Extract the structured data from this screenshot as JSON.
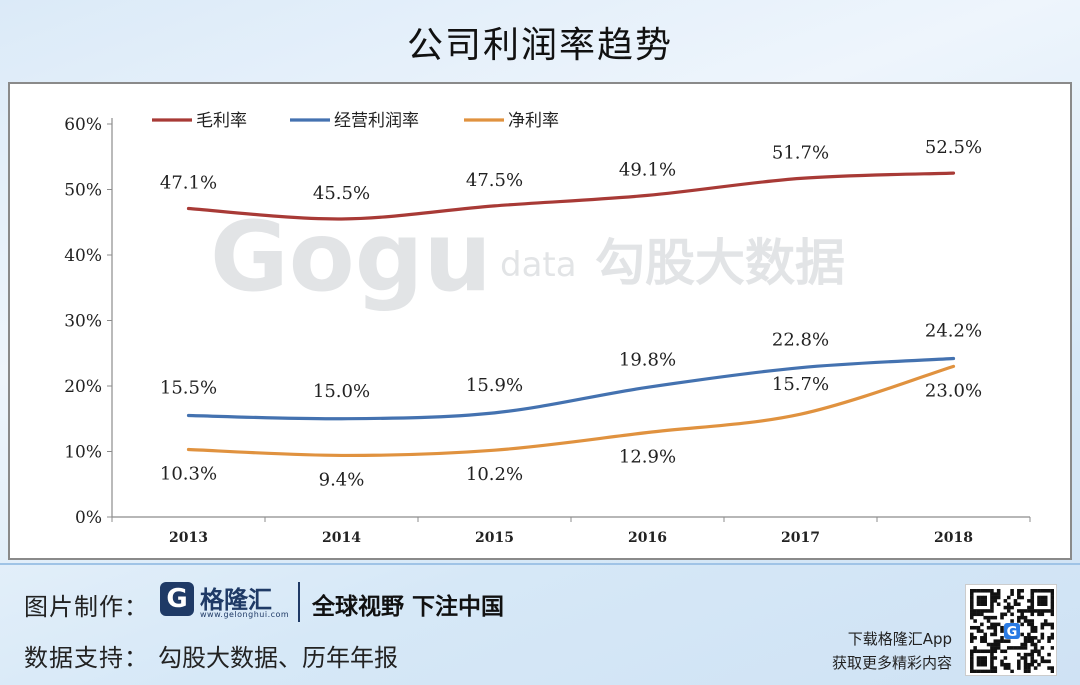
{
  "title": "公司利润率趋势",
  "watermark": {
    "brand": "Gogu",
    "sub": "data",
    "cn": "勾股大数据"
  },
  "chart_data": {
    "type": "line",
    "categories": [
      "2013",
      "2014",
      "2015",
      "2016",
      "2017",
      "2018"
    ],
    "ylim": [
      0,
      60
    ],
    "yticks": [
      "0%",
      "10%",
      "20%",
      "30%",
      "40%",
      "50%",
      "60%"
    ],
    "ytick_values": [
      0,
      10,
      20,
      30,
      40,
      50,
      60
    ],
    "grid": false,
    "legend_position": "top-left",
    "series": [
      {
        "name": "毛利率",
        "color": "#a83a36",
        "values": [
          47.1,
          45.5,
          47.5,
          49.1,
          51.7,
          52.5
        ],
        "labels": [
          "47.1%",
          "45.5%",
          "47.5%",
          "49.1%",
          "51.7%",
          "52.5%"
        ]
      },
      {
        "name": "经营利润率",
        "color": "#4472b0",
        "values": [
          15.5,
          15.0,
          15.9,
          19.8,
          22.8,
          24.2
        ],
        "labels": [
          "15.5%",
          "15.0%",
          "15.9%",
          "19.8%",
          "22.8%",
          "24.2%"
        ]
      },
      {
        "name": "净利率",
        "color": "#e0923f",
        "values": [
          10.3,
          9.4,
          10.2,
          12.9,
          15.7,
          23.0
        ],
        "labels": [
          "10.3%",
          "9.4%",
          "10.2%",
          "12.9%",
          "15.7%",
          "23.0%"
        ]
      }
    ]
  },
  "footer": {
    "maker_label": "图片制作：",
    "brand_logo_letter": "G",
    "brand_name": "格隆汇",
    "brand_url": "www.gelonghui.com",
    "slogan": "全球视野 下注中国",
    "source_label": "数据支持：",
    "sources": "勾股大数据、历年年报",
    "app_line1": "下载格隆汇App",
    "app_line2": "获取更多精彩内容",
    "qr_badge": "G"
  }
}
